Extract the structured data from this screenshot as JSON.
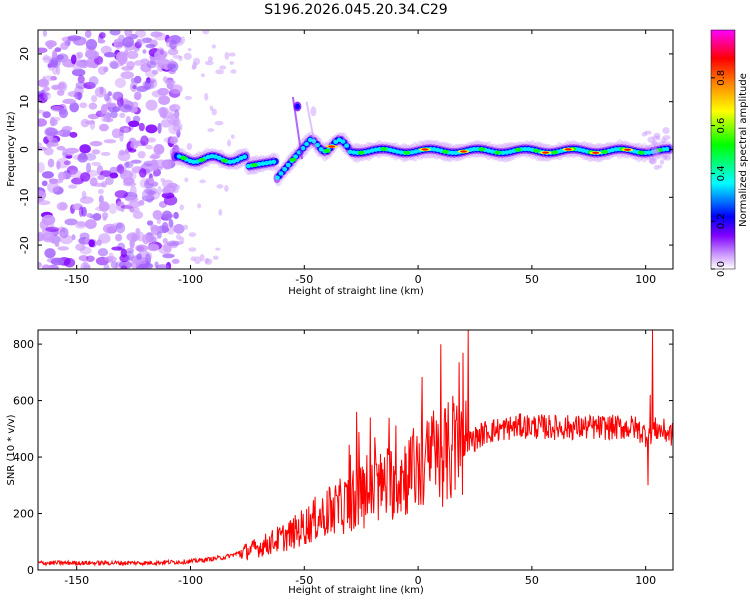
{
  "title": "S196.2026.045.20.34.C29",
  "chart_data": [
    {
      "type": "heatmap",
      "xlabel": "Height of straight line (km)",
      "ylabel": "Frequency (Hz)",
      "xlim": [
        -167,
        112
      ],
      "ylim": [
        -25,
        25
      ],
      "xticks": [
        -150,
        -100,
        -50,
        0,
        50,
        100
      ],
      "yticks": [
        -20,
        -10,
        0,
        10,
        20
      ],
      "colorbar": {
        "label": "Normalized spectral amplitude",
        "range": [
          0,
          1
        ],
        "ticks": [
          "0.0",
          "0.2",
          "0.4",
          "0.6",
          "0.8"
        ],
        "colors": [
          "#ffffff",
          "#cc99ff",
          "#8000ff",
          "#0000ff",
          "#00ffff",
          "#00ff00",
          "#ffff00",
          "#ff8000",
          "#ff0000",
          "#ff00ff"
        ]
      }
    },
    {
      "type": "line",
      "xlabel": "Height of straight line (km)",
      "ylabel": "SNR (10 * v/v)",
      "xlim": [
        -167,
        112
      ],
      "ylim": [
        0,
        850
      ],
      "xticks": [
        -150,
        -100,
        -50,
        0,
        50,
        100
      ],
      "yticks": [
        0,
        200,
        400,
        600,
        800
      ],
      "line_color": "#ff0000",
      "anchors": [
        [
          -167,
          25
        ],
        [
          -120,
          25
        ],
        [
          -100,
          30
        ],
        [
          -85,
          45
        ],
        [
          -70,
          80
        ],
        [
          -55,
          130
        ],
        [
          -45,
          180
        ],
        [
          -35,
          220
        ],
        [
          -25,
          260
        ],
        [
          -10,
          320
        ],
        [
          0,
          360
        ],
        [
          10,
          400
        ],
        [
          20,
          440
        ],
        [
          30,
          490
        ],
        [
          45,
          510
        ],
        [
          60,
          505
        ],
        [
          80,
          505
        ],
        [
          95,
          505
        ],
        [
          100,
          480
        ],
        [
          105,
          500
        ],
        [
          112,
          480
        ]
      ],
      "spikes": [
        [
          22,
          850
        ],
        [
          21,
          600
        ],
        [
          -21,
          540
        ],
        [
          -27,
          560
        ],
        [
          -19,
          470
        ],
        [
          7,
          510
        ],
        [
          103,
          850
        ],
        [
          102,
          620
        ],
        [
          101,
          300
        ],
        [
          8,
          530
        ]
      ]
    }
  ]
}
